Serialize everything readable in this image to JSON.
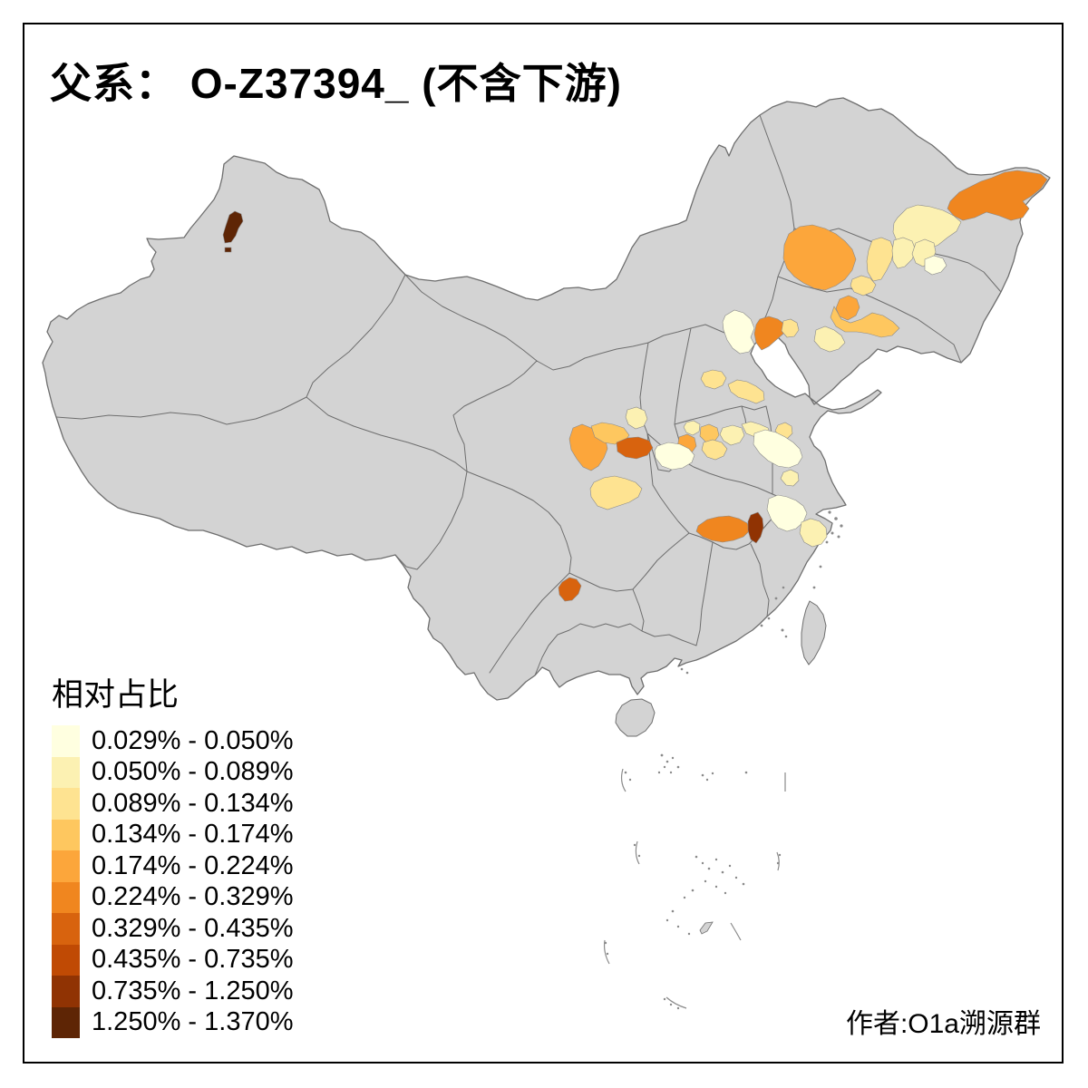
{
  "title": "父系： O-Z37394_ (不含下游)",
  "attribution": "作者:O1a溯源群",
  "legend": {
    "title": "相对占比",
    "items": [
      {
        "label": "0.029% - 0.050%",
        "color": "#FFFFE0"
      },
      {
        "label": "0.050% - 0.089%",
        "color": "#FCF1B2"
      },
      {
        "label": "0.089% - 0.134%",
        "color": "#FEE391"
      },
      {
        "label": "0.134% - 0.174%",
        "color": "#FEC75F"
      },
      {
        "label": "0.174% - 0.224%",
        "color": "#FCA63B"
      },
      {
        "label": "0.224% - 0.329%",
        "color": "#F0861F"
      },
      {
        "label": "0.329% - 0.435%",
        "color": "#D8630E"
      },
      {
        "label": "0.435% - 0.735%",
        "color": "#C04A04"
      },
      {
        "label": "0.735% - 1.250%",
        "color": "#903303"
      },
      {
        "label": "1.250% - 1.370%",
        "color": "#5E2505"
      }
    ]
  },
  "map": {
    "land_color": "#D3D3D3",
    "border_color": "#6E6E6E",
    "sea_color": "#FFFFFF",
    "regions": [
      {
        "name": "karamay-xinjiang",
        "class": 10
      },
      {
        "name": "karamay-speck",
        "class": 10
      },
      {
        "name": "far-northeast-heilongjiang",
        "class": 6
      },
      {
        "name": "central-heilongjiang",
        "class": 2
      },
      {
        "name": "west-heilongjiang",
        "class": 3
      },
      {
        "name": "songyuan",
        "class": 2
      },
      {
        "name": "tongliao-west-jilin",
        "class": 5
      },
      {
        "name": "changchun",
        "class": 2
      },
      {
        "name": "changchun-northeast",
        "class": 1
      },
      {
        "name": "siping",
        "class": 3
      },
      {
        "name": "shenyang",
        "class": 5
      },
      {
        "name": "central-liaoning",
        "class": 4
      },
      {
        "name": "dalian",
        "class": 2
      },
      {
        "name": "beijing",
        "class": 1
      },
      {
        "name": "tianjin-tangshan",
        "class": 6
      },
      {
        "name": "qinhuangdao",
        "class": 3
      },
      {
        "name": "liaocheng-shandong",
        "class": 3
      },
      {
        "name": "jinan-shandong",
        "class": 3
      },
      {
        "name": "dingxi-gansu",
        "class": 5
      },
      {
        "name": "pingliang-gansu",
        "class": 4
      },
      {
        "name": "guanzhong-xian",
        "class": 7
      },
      {
        "name": "qingyang",
        "class": 2
      },
      {
        "name": "sanmenxia-luoyang",
        "class": 5
      },
      {
        "name": "xinxiang-henan",
        "class": 4
      },
      {
        "name": "anyang-henan",
        "class": 2
      },
      {
        "name": "zhengzhou-henan",
        "class": 3
      },
      {
        "name": "kaifeng-henan",
        "class": 2
      },
      {
        "name": "nanyang-henan",
        "class": 1
      },
      {
        "name": "hanzhong-shaanxi",
        "class": 3
      },
      {
        "name": "xiangyang-hubei",
        "class": 6
      },
      {
        "name": "suizhou-hubei",
        "class": 9
      },
      {
        "name": "north-anhui",
        "class": 2
      },
      {
        "name": "bengbu-anhui",
        "class": 3
      },
      {
        "name": "central-anhui",
        "class": 1
      },
      {
        "name": "hefei-anhui",
        "class": 2
      },
      {
        "name": "south-jiangsu",
        "class": 1
      },
      {
        "name": "north-zhejiang",
        "class": 2
      },
      {
        "name": "anshun-guizhou",
        "class": 7
      }
    ]
  }
}
